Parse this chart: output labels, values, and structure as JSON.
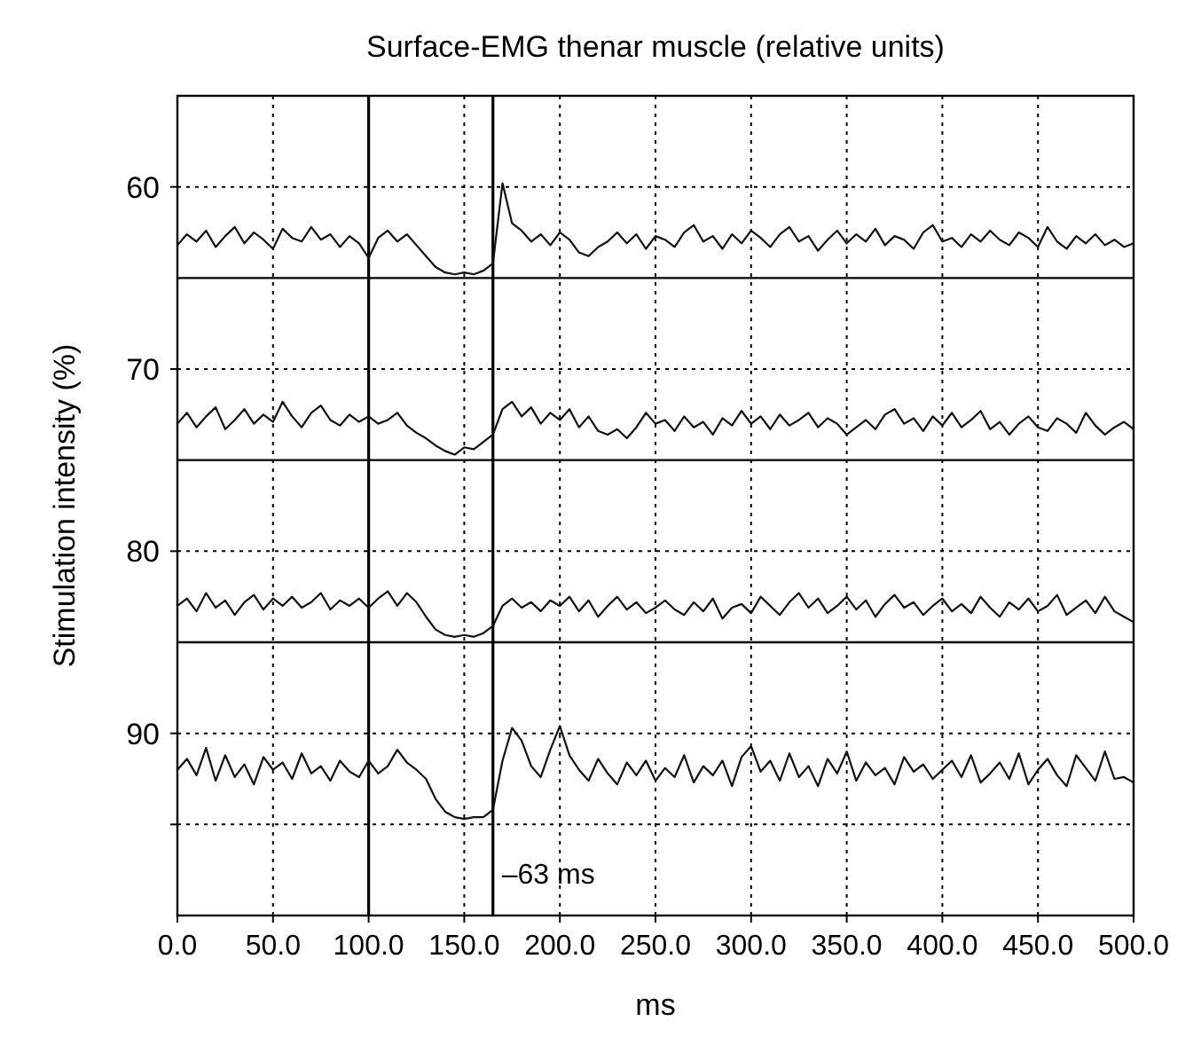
{
  "chart_data": {
    "type": "line",
    "title": "Surface-EMG thenar muscle (relative units)",
    "xlabel": "ms",
    "ylabel": "Stimulation intensity (%)",
    "x": [
      0,
      5,
      10,
      15,
      20,
      25,
      30,
      35,
      40,
      45,
      50,
      55,
      60,
      65,
      70,
      75,
      80,
      85,
      90,
      95,
      100,
      105,
      110,
      115,
      120,
      125,
      130,
      135,
      140,
      145,
      150,
      155,
      160,
      165,
      170,
      175,
      180,
      185,
      190,
      195,
      200,
      205,
      210,
      215,
      220,
      225,
      230,
      235,
      240,
      245,
      250,
      255,
      260,
      265,
      270,
      275,
      280,
      285,
      290,
      295,
      300,
      305,
      310,
      315,
      320,
      325,
      330,
      335,
      340,
      345,
      350,
      355,
      360,
      365,
      370,
      375,
      380,
      385,
      390,
      395,
      400,
      405,
      410,
      415,
      420,
      425,
      430,
      435,
      440,
      445,
      450,
      455,
      460,
      465,
      470,
      475,
      480,
      485,
      490,
      495,
      500
    ],
    "series": [
      {
        "color": "#111111",
        "values": [
          63.2,
          62.6,
          63.0,
          62.4,
          63.3,
          62.7,
          62.2,
          63.1,
          62.5,
          62.9,
          63.4,
          62.3,
          62.8,
          63.0,
          62.2,
          62.9,
          62.6,
          63.3,
          62.7,
          63.1,
          63.9,
          62.8,
          62.4,
          63.0,
          62.6,
          63.2,
          63.8,
          64.4,
          64.7,
          64.8,
          64.7,
          64.8,
          64.6,
          64.2,
          59.8,
          62.0,
          62.4,
          63.0,
          62.6,
          63.2,
          62.5,
          62.9,
          63.6,
          63.8,
          63.3,
          63.0,
          62.5,
          63.1,
          62.6,
          63.4,
          62.7,
          62.9,
          63.3,
          62.5,
          62.1,
          63.0,
          62.7,
          63.4,
          62.6,
          63.1,
          62.4,
          62.8,
          63.3,
          62.6,
          62.2,
          63.0,
          62.7,
          63.5,
          62.9,
          62.4,
          63.1,
          62.6,
          63.0,
          62.3,
          63.2,
          62.7,
          62.9,
          63.4,
          62.5,
          62.1,
          63.0,
          62.8,
          63.3,
          62.6,
          63.0,
          62.4,
          62.9,
          63.2,
          62.5,
          62.8,
          63.3,
          62.2,
          63.0,
          63.4,
          62.7,
          63.1,
          62.6,
          63.2,
          62.9,
          63.3,
          63.1
        ]
      },
      {
        "color": "#111111",
        "values": [
          73.0,
          72.4,
          73.2,
          72.6,
          72.1,
          73.3,
          72.8,
          72.2,
          73.0,
          72.5,
          72.9,
          71.8,
          72.6,
          73.2,
          72.4,
          72.0,
          72.8,
          73.1,
          72.5,
          72.9,
          72.6,
          73.0,
          72.8,
          72.4,
          73.1,
          73.5,
          73.8,
          74.2,
          74.5,
          74.7,
          74.3,
          74.4,
          74.0,
          73.6,
          72.2,
          71.8,
          72.6,
          72.1,
          73.0,
          72.4,
          72.8,
          72.2,
          73.2,
          72.6,
          73.4,
          73.6,
          73.3,
          73.8,
          73.2,
          72.4,
          73.0,
          72.8,
          73.4,
          72.6,
          73.2,
          72.9,
          73.6,
          72.7,
          73.1,
          72.3,
          73.0,
          72.6,
          73.3,
          72.5,
          73.1,
          72.8,
          72.4,
          73.2,
          72.7,
          73.0,
          73.6,
          73.2,
          72.8,
          73.3,
          72.5,
          72.2,
          73.0,
          72.7,
          73.4,
          72.6,
          73.1,
          72.4,
          73.2,
          72.8,
          72.3,
          73.3,
          72.9,
          73.6,
          73.0,
          72.6,
          73.2,
          73.4,
          72.7,
          73.0,
          73.5,
          72.4,
          73.1,
          73.6,
          73.2,
          72.9,
          73.3
        ]
      },
      {
        "color": "#111111",
        "values": [
          83.0,
          82.6,
          83.3,
          82.3,
          83.1,
          82.7,
          83.5,
          82.8,
          82.4,
          83.2,
          82.6,
          83.0,
          82.5,
          83.1,
          82.8,
          82.3,
          83.2,
          82.7,
          83.0,
          82.6,
          83.1,
          82.6,
          82.2,
          83.0,
          82.3,
          82.8,
          83.6,
          84.3,
          84.6,
          84.7,
          84.6,
          84.7,
          84.5,
          84.1,
          83.0,
          82.6,
          83.1,
          82.8,
          83.3,
          82.7,
          83.0,
          82.5,
          83.3,
          82.7,
          83.6,
          83.0,
          82.5,
          83.2,
          82.8,
          83.4,
          83.1,
          82.7,
          83.2,
          83.5,
          82.8,
          83.3,
          82.6,
          83.7,
          83.1,
          82.9,
          83.4,
          82.5,
          83.0,
          83.5,
          82.8,
          82.3,
          83.1,
          82.6,
          83.4,
          83.0,
          82.5,
          83.2,
          82.7,
          83.6,
          82.9,
          82.4,
          83.1,
          82.8,
          83.5,
          83.0,
          82.6,
          83.3,
          82.9,
          83.4,
          82.5,
          83.1,
          83.6,
          82.8,
          83.2,
          82.6,
          83.3,
          83.0,
          82.4,
          83.5,
          83.1,
          82.7,
          83.4,
          82.5,
          83.3,
          83.6,
          83.9
        ]
      },
      {
        "color": "#111111",
        "values": [
          92.0,
          91.4,
          92.3,
          90.8,
          92.6,
          91.2,
          92.4,
          91.7,
          92.8,
          91.3,
          92.0,
          91.6,
          92.5,
          91.1,
          92.2,
          91.8,
          92.6,
          91.5,
          92.1,
          92.4,
          91.5,
          92.2,
          91.8,
          90.9,
          91.6,
          92.0,
          92.5,
          93.6,
          94.3,
          94.6,
          94.7,
          94.6,
          94.6,
          94.2,
          91.5,
          89.7,
          90.4,
          91.8,
          92.4,
          90.9,
          89.6,
          91.2,
          92.0,
          92.6,
          91.4,
          92.2,
          92.8,
          91.6,
          92.3,
          91.5,
          92.6,
          91.9,
          92.4,
          91.2,
          92.7,
          91.8,
          92.3,
          91.5,
          92.9,
          91.3,
          90.7,
          92.1,
          91.5,
          92.6,
          91.1,
          92.4,
          91.8,
          92.9,
          91.4,
          92.2,
          91.0,
          92.6,
          91.6,
          92.3,
          91.9,
          92.8,
          91.3,
          92.1,
          91.7,
          92.5,
          92.0,
          91.5,
          92.4,
          91.2,
          92.7,
          92.2,
          91.6,
          92.5,
          91.1,
          92.8,
          92.0,
          91.4,
          92.3,
          92.9,
          91.2,
          91.9,
          92.6,
          91.0,
          92.5,
          92.4,
          92.7
        ]
      }
    ],
    "xlim": [
      0,
      500
    ],
    "xticks": [
      {
        "value": 0,
        "label": "0.0"
      },
      {
        "value": 50,
        "label": "50.0"
      },
      {
        "value": 100,
        "label": "100.0"
      },
      {
        "value": 150,
        "label": "150.0"
      },
      {
        "value": 200,
        "label": "200.0"
      },
      {
        "value": 250,
        "label": "250.0"
      },
      {
        "value": 300,
        "label": "300.0"
      },
      {
        "value": 350,
        "label": "350.0"
      },
      {
        "value": 400,
        "label": "400.0"
      },
      {
        "value": 450,
        "label": "450.0"
      },
      {
        "value": 500,
        "label": "500.0"
      }
    ],
    "ylim": [
      100,
      55
    ],
    "yticks": [
      60,
      70,
      80,
      90,
      {
        "value": 95,
        "label": null
      }
    ],
    "grid": true,
    "marker": "none",
    "line_style": "solid",
    "ref_lines": [
      {
        "axis": "y",
        "value": 65,
        "color": "#000000",
        "line_style": "solid"
      },
      {
        "axis": "y",
        "value": 75,
        "color": "#000000",
        "line_style": "solid"
      },
      {
        "axis": "y",
        "value": 85,
        "color": "#000000",
        "line_style": "solid"
      },
      {
        "axis": "x",
        "value": 100,
        "color": "#000000",
        "line_style": "solid"
      },
      {
        "axis": "x",
        "value": 165,
        "color": "#000000",
        "line_style": "solid"
      }
    ],
    "annotations": [
      {
        "text": "–63 ms",
        "x": 165,
        "y": 97
      }
    ]
  }
}
